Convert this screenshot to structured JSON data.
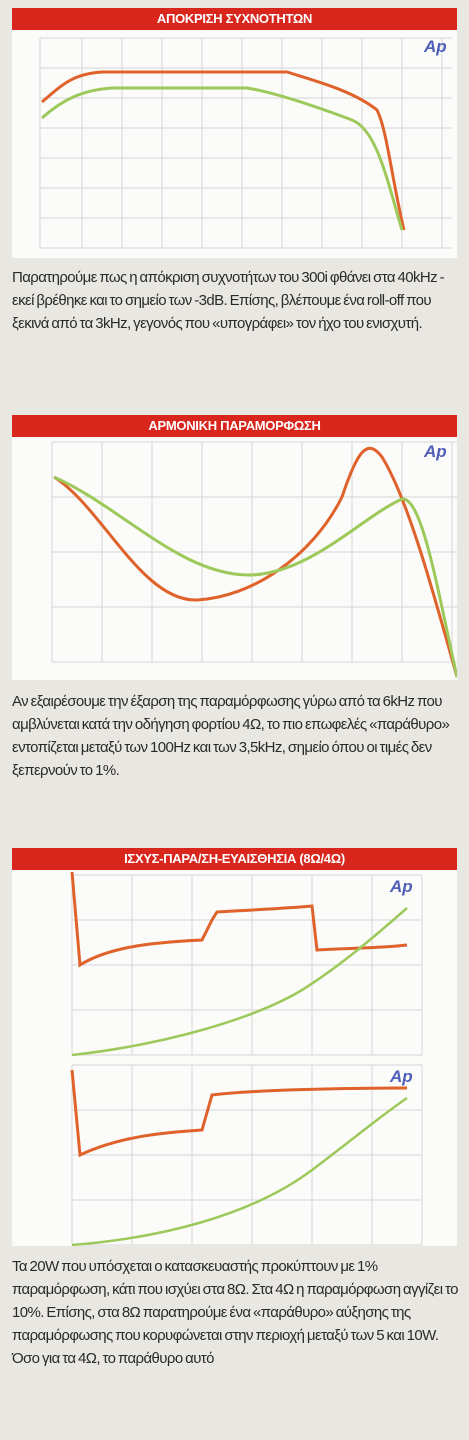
{
  "panels": [
    {
      "title": "ΑΠΟΚΡΙΣΗ ΣΥΧΝΟΤΗΤΩΝ",
      "logo": "Ap",
      "caption": "Παρατηρούμε πως η απόκριση συχνοτήτων του 300i φθάνει στα 40kHz - εκεί βρέθηκε και το σημείο των -3dB. Επίσης, βλέπουμε ένα roll-off που ξεκινά από τα 3kHz, γεγονός που «υπογράφει» τον ήχο του ενισχυτή."
    },
    {
      "title": "ΑΡΜΟΝΙΚΗ ΠΑΡΑΜΟΡΦΩΣΗ",
      "logo": "Ap",
      "caption": "Αν εξαιρέσουμε την έξαρση της παραμόρφωσης γύρω από τα 6kHz που αμβλύνεται κατά την οδήγηση φορτίου 4Ω, το πιο επωφελές «παράθυρο» εντοπίζεται μεταξύ των 100Hz και των 3,5kHz, σημείο όπου οι τιμές δεν ξεπερνούν το 1%."
    },
    {
      "title": "ΙΣΧΥΣ-ΠΑΡΑ/ΣΗ-ΕΥΑΙΣΘΗΣΙΑ (8Ω/4Ω)",
      "logo": "Ap",
      "caption": "Τα 20W που υπόσχεται ο κατασκευαστής προκύπτουν με 1% παραμόρφωση, κάτι που ισχύει στα 8Ω. Στα 4Ω η παραμόρφωση αγγίζει το 10%. Επίσης, στα 8Ω παρατηρούμε ένα «παράθυρο» αύξησης της παραμόρφωσης που κορυφώνεται στην περιοχή μεταξύ των 5 και 10W. Όσο για τα 4Ω, το παράθυρο αυτό"
    }
  ]
}
